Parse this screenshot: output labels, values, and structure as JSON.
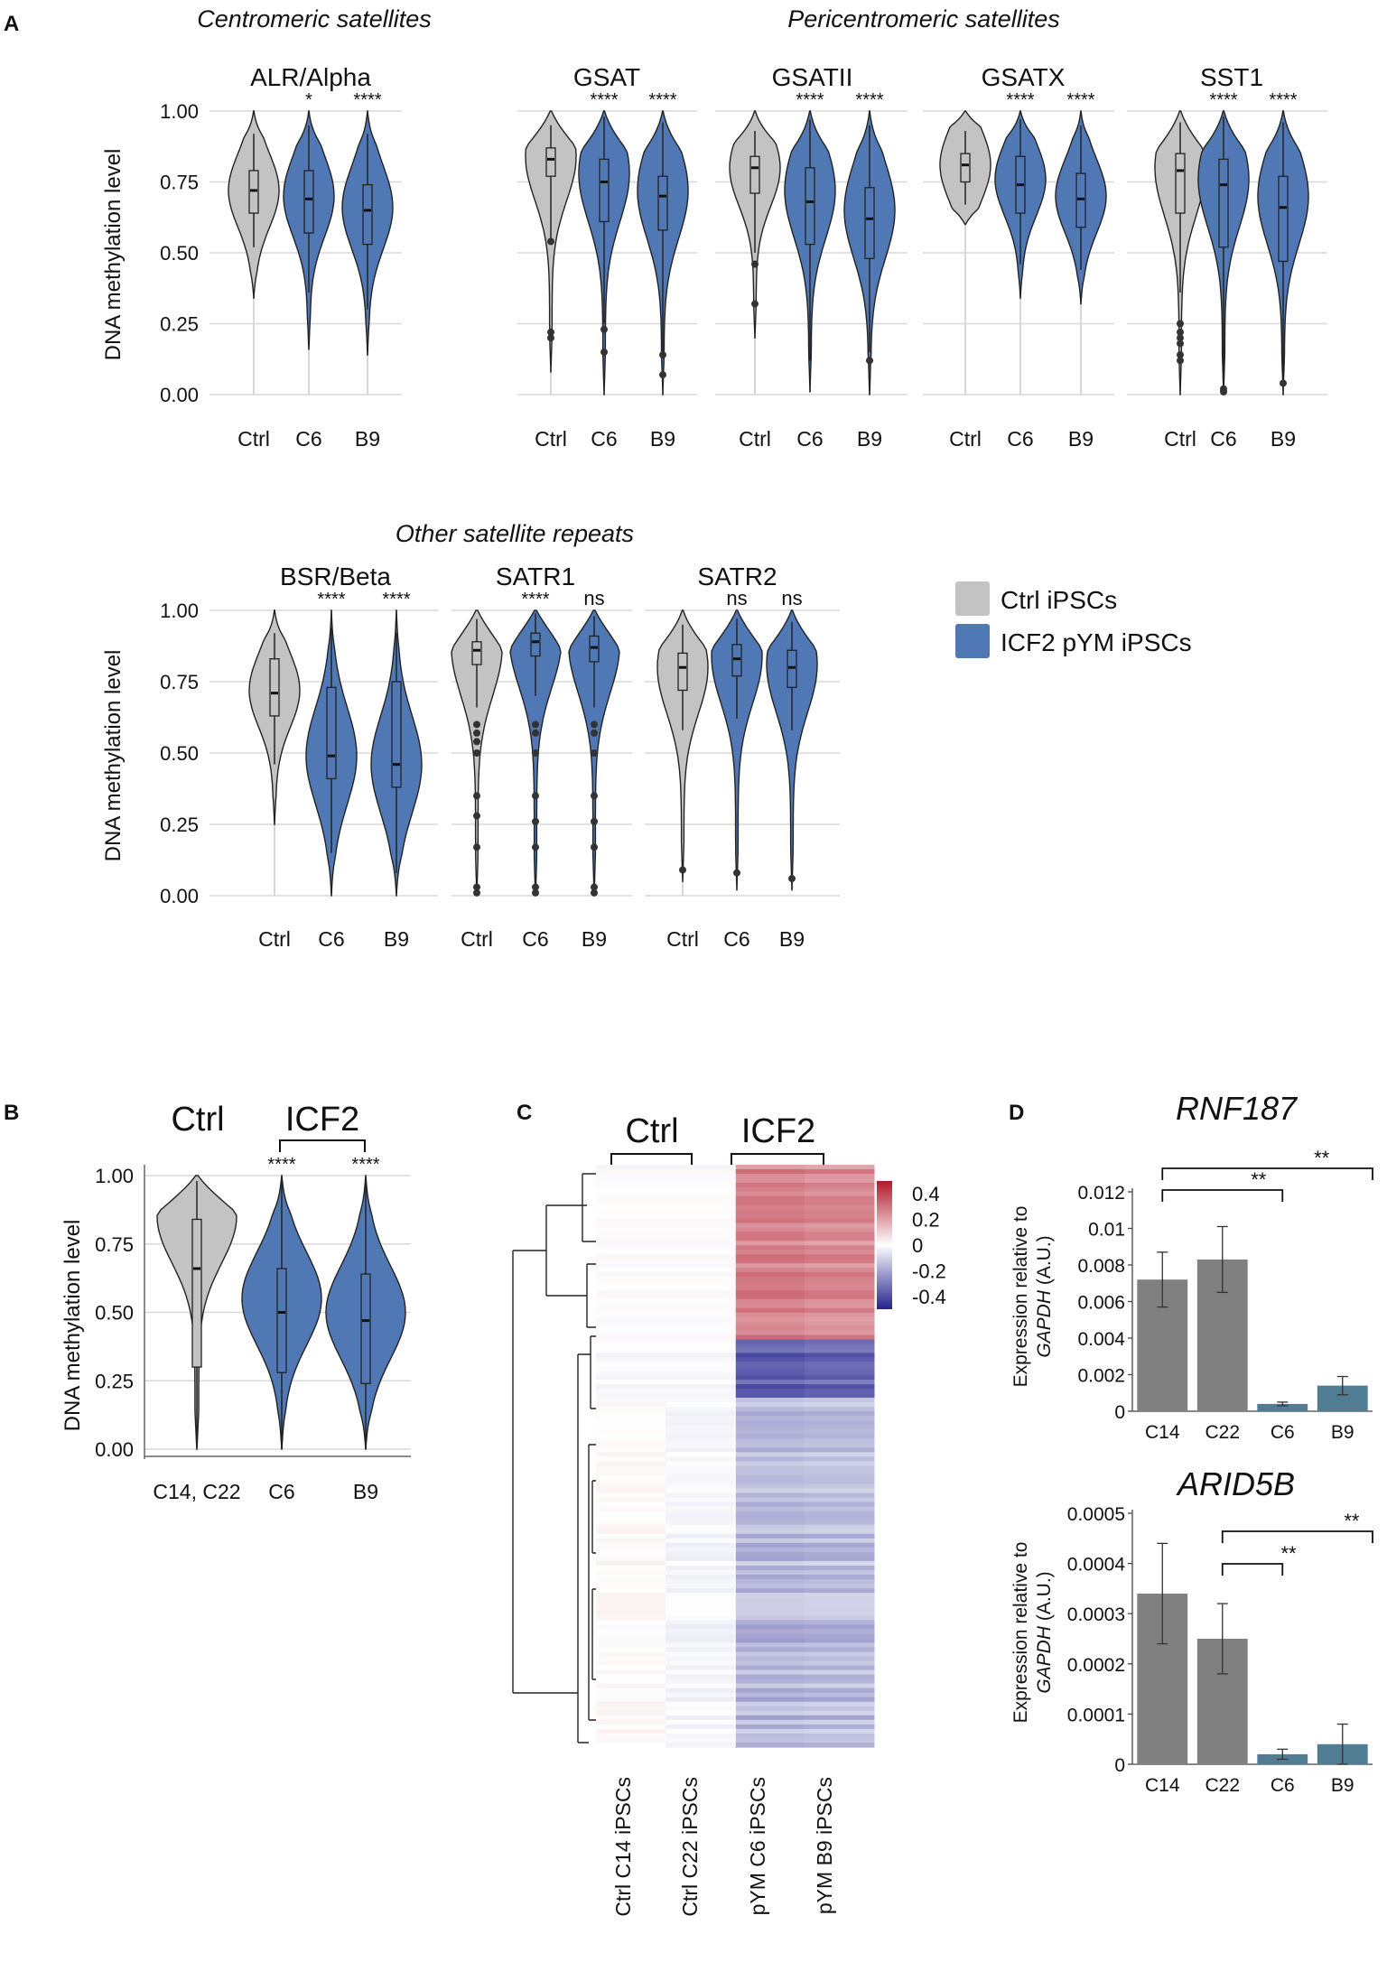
{
  "colors": {
    "ctrl": "#c3c3c3",
    "icf2": "#5078b4",
    "bar_ctrl": "#808080",
    "bar_icf2": "#517d92",
    "grid": "#d8d8d8",
    "heat_pos": "#b2182b",
    "heat_neg": "#23238f"
  },
  "chart_data": [
    {
      "type": "violin",
      "panel": "A",
      "group_titles": [
        "Centromeric satellites",
        "Pericentromeric satellites",
        "Other satellite repeats"
      ],
      "ylabel": "DNA methylation level",
      "yticks": [
        "1.00",
        "0.75",
        "0.50",
        "0.25",
        "0.00"
      ],
      "ylim": [
        0,
        1
      ],
      "subplots": [
        {
          "title": "ALR/Alpha",
          "row": 0,
          "violins": [
            {
              "label": "Ctrl",
              "group": "ctrl",
              "min": 0.34,
              "max": 1.0,
              "mode": 0.72,
              "median": 0.72,
              "q1": 0.64,
              "q3": 0.79,
              "wlo": 0.52,
              "whi": 0.92,
              "sig": ""
            },
            {
              "label": "C6",
              "group": "icf2",
              "min": 0.16,
              "max": 1.0,
              "mode": 0.7,
              "median": 0.69,
              "q1": 0.57,
              "q3": 0.79,
              "wlo": 0.36,
              "whi": 0.95,
              "sig": "*"
            },
            {
              "label": "B9",
              "group": "icf2",
              "min": 0.14,
              "max": 1.0,
              "mode": 0.66,
              "median": 0.65,
              "q1": 0.53,
              "q3": 0.74,
              "wlo": 0.3,
              "whi": 0.92,
              "sig": "****"
            }
          ]
        },
        {
          "title": "GSAT",
          "row": 0,
          "violins": [
            {
              "label": "Ctrl",
              "group": "ctrl",
              "min": 0.08,
              "max": 1.0,
              "mode": 0.84,
              "median": 0.83,
              "q1": 0.77,
              "q3": 0.87,
              "wlo": 0.55,
              "whi": 0.95,
              "sig": "",
              "outliers": [
                0.54,
                0.22,
                0.2
              ]
            },
            {
              "label": "C6",
              "group": "icf2",
              "min": 0.0,
              "max": 1.0,
              "mode": 0.78,
              "median": 0.75,
              "q1": 0.61,
              "q3": 0.83,
              "wlo": 0.25,
              "whi": 0.98,
              "sig": "****",
              "outliers": [
                0.23,
                0.15
              ]
            },
            {
              "label": "B9",
              "group": "icf2",
              "min": 0.0,
              "max": 1.0,
              "mode": 0.72,
              "median": 0.7,
              "q1": 0.58,
              "q3": 0.77,
              "wlo": 0.15,
              "whi": 0.96,
              "sig": "****",
              "outliers": [
                0.14,
                0.07
              ]
            }
          ]
        },
        {
          "title": "GSATII",
          "row": 0,
          "violins": [
            {
              "label": "Ctrl",
              "group": "ctrl",
              "min": 0.2,
              "max": 1.0,
              "mode": 0.8,
              "median": 0.8,
              "q1": 0.71,
              "q3": 0.84,
              "wlo": 0.5,
              "whi": 0.93,
              "sig": "",
              "outliers": [
                0.46,
                0.32
              ]
            },
            {
              "label": "C6",
              "group": "icf2",
              "min": 0.01,
              "max": 1.0,
              "mode": 0.72,
              "median": 0.68,
              "q1": 0.53,
              "q3": 0.8,
              "wlo": 0.12,
              "whi": 0.97,
              "sig": "****"
            },
            {
              "label": "B9",
              "group": "icf2",
              "min": 0.0,
              "max": 1.0,
              "mode": 0.65,
              "median": 0.62,
              "q1": 0.48,
              "q3": 0.73,
              "wlo": 0.15,
              "whi": 0.95,
              "sig": "****",
              "outliers": [
                0.12
              ]
            }
          ]
        },
        {
          "title": "GSATX",
          "row": 0,
          "violins": [
            {
              "label": "Ctrl",
              "group": "ctrl",
              "min": 0.6,
              "max": 1.0,
              "mode": 0.81,
              "median": 0.81,
              "q1": 0.75,
              "q3": 0.85,
              "wlo": 0.67,
              "whi": 0.93,
              "sig": ""
            },
            {
              "label": "C6",
              "group": "icf2",
              "min": 0.34,
              "max": 1.0,
              "mode": 0.76,
              "median": 0.74,
              "q1": 0.64,
              "q3": 0.84,
              "wlo": 0.46,
              "whi": 0.97,
              "sig": "****"
            },
            {
              "label": "B9",
              "group": "icf2",
              "min": 0.32,
              "max": 1.0,
              "mode": 0.7,
              "median": 0.69,
              "q1": 0.59,
              "q3": 0.78,
              "wlo": 0.44,
              "whi": 0.95,
              "sig": "****"
            }
          ]
        },
        {
          "title": "SST1",
          "row": 0,
          "violins": [
            {
              "label": "Ctrl",
              "group": "ctrl",
              "min": 0.0,
              "max": 1.0,
              "mode": 0.8,
              "median": 0.79,
              "q1": 0.64,
              "q3": 0.85,
              "wlo": 0.36,
              "whi": 0.96,
              "sig": "",
              "outliers": [
                0.25,
                0.22,
                0.2,
                0.18,
                0.14,
                0.12
              ]
            },
            {
              "label": "C6",
              "group": "icf2",
              "min": 0.0,
              "max": 1.0,
              "mode": 0.76,
              "median": 0.74,
              "q1": 0.52,
              "q3": 0.83,
              "wlo": 0.06,
              "whi": 0.98,
              "sig": "****",
              "outliers": [
                0.02,
                0.01
              ]
            },
            {
              "label": "B9",
              "group": "icf2",
              "min": 0.0,
              "max": 1.0,
              "mode": 0.7,
              "median": 0.66,
              "q1": 0.47,
              "q3": 0.77,
              "wlo": 0.05,
              "whi": 0.96,
              "sig": "****",
              "outliers": [
                0.04
              ]
            }
          ]
        },
        {
          "title": "BSR/Beta",
          "row": 1,
          "violins": [
            {
              "label": "Ctrl",
              "group": "ctrl",
              "min": 0.25,
              "max": 1.0,
              "mode": 0.72,
              "median": 0.71,
              "q1": 0.63,
              "q3": 0.83,
              "wlo": 0.46,
              "whi": 0.92,
              "sig": ""
            },
            {
              "label": "C6",
              "group": "icf2",
              "min": 0.0,
              "max": 1.0,
              "mode": 0.49,
              "median": 0.49,
              "q1": 0.41,
              "q3": 0.73,
              "wlo": 0.15,
              "whi": 0.94,
              "sig": "****"
            },
            {
              "label": "B9",
              "group": "icf2",
              "min": 0.0,
              "max": 1.0,
              "mode": 0.46,
              "median": 0.46,
              "q1": 0.38,
              "q3": 0.75,
              "wlo": 0.08,
              "whi": 0.92,
              "sig": "****"
            }
          ]
        },
        {
          "title": "SATR1",
          "row": 1,
          "violins": [
            {
              "label": "Ctrl",
              "group": "ctrl",
              "min": 0.0,
              "max": 1.0,
              "mode": 0.87,
              "median": 0.86,
              "q1": 0.81,
              "q3": 0.89,
              "wlo": 0.66,
              "whi": 0.97,
              "sig": "",
              "outliers": [
                0.6,
                0.57,
                0.54,
                0.5,
                0.35,
                0.28,
                0.17,
                0.03,
                0.01
              ]
            },
            {
              "label": "C6",
              "group": "icf2",
              "min": 0.0,
              "max": 1.0,
              "mode": 0.9,
              "median": 0.89,
              "q1": 0.84,
              "q3": 0.92,
              "wlo": 0.7,
              "whi": 0.99,
              "sig": "****",
              "outliers": [
                0.6,
                0.57,
                0.5,
                0.35,
                0.26,
                0.17,
                0.03,
                0.01
              ]
            },
            {
              "label": "B9",
              "group": "icf2",
              "min": 0.0,
              "max": 1.0,
              "mode": 0.88,
              "median": 0.87,
              "q1": 0.82,
              "q3": 0.91,
              "wlo": 0.66,
              "whi": 0.98,
              "sig": "ns",
              "outliers": [
                0.6,
                0.57,
                0.5,
                0.35,
                0.26,
                0.17,
                0.03,
                0.01
              ]
            }
          ]
        },
        {
          "title": "SATR2",
          "row": 1,
          "violins": [
            {
              "label": "Ctrl",
              "group": "ctrl",
              "min": 0.05,
              "max": 1.0,
              "mode": 0.8,
              "median": 0.8,
              "q1": 0.72,
              "q3": 0.85,
              "wlo": 0.58,
              "whi": 0.95,
              "sig": "",
              "outliers": [
                0.09
              ]
            },
            {
              "label": "C6",
              "group": "icf2",
              "min": 0.02,
              "max": 1.0,
              "mode": 0.84,
              "median": 0.83,
              "q1": 0.77,
              "q3": 0.88,
              "wlo": 0.62,
              "whi": 0.97,
              "sig": "ns",
              "outliers": [
                0.08
              ]
            },
            {
              "label": "B9",
              "group": "icf2",
              "min": 0.02,
              "max": 1.0,
              "mode": 0.81,
              "median": 0.8,
              "q1": 0.73,
              "q3": 0.86,
              "wlo": 0.58,
              "whi": 0.96,
              "sig": "ns",
              "outliers": [
                0.06
              ]
            }
          ]
        }
      ],
      "legend": [
        "Ctrl iPSCs",
        "ICF2 pYM iPSCs"
      ],
      "legend_placement": "right"
    },
    {
      "type": "violin",
      "panel": "B",
      "group_labels": [
        "Ctrl",
        "ICF2"
      ],
      "ylabel": "DNA methylation level",
      "yticks": [
        "1.00",
        "0.75",
        "0.50",
        "0.25",
        "0.00"
      ],
      "ylim": [
        0,
        1
      ],
      "violins": [
        {
          "label": "C14, C22",
          "group": "ctrl",
          "min": 0.0,
          "max": 1.0,
          "mode": 0.85,
          "median": 0.66,
          "q1": 0.3,
          "q3": 0.84,
          "wlo": 0.02,
          "whi": 0.98,
          "sig": ""
        },
        {
          "label": "C6",
          "group": "icf2",
          "min": 0.0,
          "max": 1.0,
          "mode": 0.55,
          "median": 0.5,
          "q1": 0.28,
          "q3": 0.66,
          "wlo": 0.0,
          "whi": 0.98,
          "sig": "****"
        },
        {
          "label": "B9",
          "group": "icf2",
          "min": 0.0,
          "max": 1.0,
          "mode": 0.5,
          "median": 0.47,
          "q1": 0.24,
          "q3": 0.64,
          "wlo": 0.0,
          "whi": 0.98,
          "sig": "****"
        }
      ]
    },
    {
      "type": "heatmap",
      "panel": "C",
      "group_labels": [
        "Ctrl",
        "ICF2"
      ],
      "columns": [
        "Ctrl C14 iPSCs",
        "Ctrl C22 iPSCs",
        "pYM C6 iPSCs",
        "pYM B9 iPSCs"
      ],
      "colorbar_ticks": [
        "0.4",
        "0.2",
        "0",
        "-0.2",
        "-0.4"
      ],
      "colorbar_range": [
        -0.5,
        0.5
      ],
      "blocks": [
        {
          "rows_fraction": 0.3,
          "values": [
            0.0,
            0.0,
            0.27,
            0.25
          ]
        },
        {
          "rows_fraction": 0.1,
          "values": [
            -0.01,
            -0.01,
            -0.36,
            -0.34
          ]
        },
        {
          "rows_fraction": 0.6,
          "values": [
            0.01,
            -0.02,
            -0.16,
            -0.15
          ]
        }
      ]
    },
    {
      "type": "bar",
      "panel": "D",
      "title": "RNF187",
      "ylabel": "Expression relative to GAPDH (A.U.)",
      "categories": [
        "C14",
        "C22",
        "C6",
        "B9"
      ],
      "values": [
        0.0072,
        0.0083,
        0.0004,
        0.0014
      ],
      "errors": [
        0.0015,
        0.0018,
        0.0001,
        0.0005
      ],
      "yticks": [
        "0.012",
        "0.01",
        "0.008",
        "0.006",
        "0.004",
        "0.002",
        "0"
      ],
      "ylim": [
        0,
        0.012
      ],
      "significance": [
        {
          "from": "C14",
          "to": "C6",
          "label": "**"
        },
        {
          "from": "C14",
          "to": "B9",
          "label": "**"
        }
      ]
    },
    {
      "type": "bar",
      "panel": "D",
      "title": "ARID5B",
      "ylabel": "Expression relative to GAPDH (A.U.)",
      "categories": [
        "C14",
        "C22",
        "C6",
        "B9"
      ],
      "values": [
        0.00034,
        0.00025,
        2e-05,
        4e-05
      ],
      "errors": [
        0.0001,
        7e-05,
        1e-05,
        4e-05
      ],
      "yticks": [
        "0.0005",
        "0.0004",
        "0.0003",
        "0.0002",
        "0.0001",
        "0"
      ],
      "ylim": [
        0,
        0.0005
      ],
      "significance": [
        {
          "from": "C22",
          "to": "C6",
          "label": "**"
        },
        {
          "from": "C22",
          "to": "B9",
          "label": "**"
        }
      ]
    }
  ],
  "panel_labels": [
    "A",
    "B",
    "C",
    "D"
  ],
  "ylabel_prefix": "Expression relative to",
  "ylabel_gene": "GAPDH",
  "ylabel_units": "(A.U.)"
}
